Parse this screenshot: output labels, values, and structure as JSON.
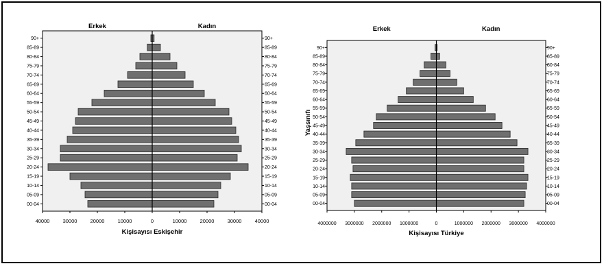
{
  "colors": {
    "plot_bg": "#f0f0f0",
    "bar_fill": "#6f6f6f",
    "bar_stroke": "#2a2a2a",
    "axis": "#000000",
    "text": "#000000"
  },
  "chart_data": [
    {
      "type": "bar",
      "orientation": "horizontal-pyramid",
      "title": "",
      "categories": [
        "00-04",
        "05-09",
        "10-14",
        "15-19",
        "20-24",
        "25-29",
        "30-34",
        "35-39",
        "40-44",
        "45-49",
        "50-54",
        "55-59",
        "60-64",
        "65-69",
        "70-74",
        "75-79",
        "80-84",
        "85-89",
        "90+"
      ],
      "series": [
        {
          "name": "Erkek",
          "values": [
            23500,
            24500,
            26000,
            30000,
            38000,
            33500,
            33500,
            31000,
            29000,
            28000,
            27000,
            22000,
            17500,
            12500,
            9000,
            6000,
            4500,
            1800,
            500
          ]
        },
        {
          "name": "Kadın",
          "values": [
            22500,
            24000,
            25000,
            28500,
            35000,
            31000,
            32500,
            31500,
            30500,
            29000,
            28000,
            23000,
            19000,
            15000,
            12000,
            9000,
            6500,
            3000,
            700
          ]
        }
      ],
      "xlabel": "Kişisayısı Eskişehir",
      "ylabel": "",
      "x_ticks": [
        "40000",
        "30000",
        "20000",
        "10000",
        "0",
        "10000",
        "20000",
        "30000",
        "40000"
      ],
      "xlim": [
        -40000,
        40000
      ]
    },
    {
      "type": "bar",
      "orientation": "horizontal-pyramid",
      "title": "",
      "categories": [
        "00-04",
        "05-09",
        "10-14",
        "15-19",
        "20-24",
        "25-29",
        "30-34",
        "35-39",
        "40-44",
        "45-49",
        "50-54",
        "55-59",
        "60-64",
        "65-69",
        "70-74",
        "75-79",
        "80-84",
        "85-89",
        "90+"
      ],
      "series": [
        {
          "name": "Erkek",
          "values": [
            3000000,
            3100000,
            3100000,
            3150000,
            3050000,
            3100000,
            3300000,
            2950000,
            2650000,
            2300000,
            2200000,
            1800000,
            1400000,
            1100000,
            850000,
            600000,
            450000,
            200000,
            50000
          ]
        },
        {
          "name": "Kadın",
          "values": [
            3200000,
            3250000,
            3300000,
            3350000,
            3200000,
            3200000,
            3350000,
            2950000,
            2700000,
            2400000,
            2150000,
            1800000,
            1350000,
            1000000,
            750000,
            500000,
            350000,
            120000,
            30000
          ]
        }
      ],
      "xlabel": "Kişisayısı Türkiye",
      "ylabel": "Yaşsınıfı",
      "x_ticks": [
        "4000000",
        "3000000",
        "2000000",
        "1000000",
        "0",
        "1000000",
        "2000000",
        "3000000",
        "4000000"
      ],
      "xlim": [
        -4000000,
        4000000
      ]
    }
  ]
}
